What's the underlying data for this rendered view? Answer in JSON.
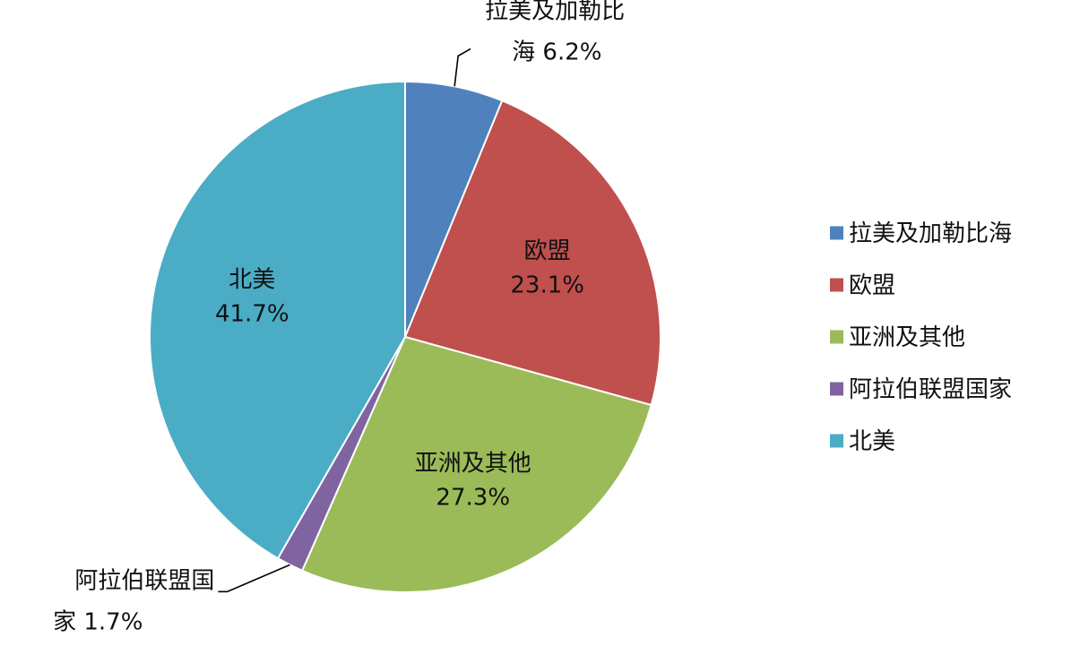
{
  "chart_data": {
    "type": "pie",
    "title": "",
    "slices": [
      {
        "name": "拉美及加勒比海",
        "value": 6.2,
        "value_label": "6.2%",
        "color": "#4F81BD",
        "label_lines": [
          "拉美及加勒比",
          "海"
        ]
      },
      {
        "name": "欧盟",
        "value": 23.1,
        "value_label": "23.1%",
        "color": "#C0504D",
        "label_lines": [
          "欧盟"
        ]
      },
      {
        "name": "亚洲及其他",
        "value": 27.3,
        "value_label": "27.3%",
        "color": "#9BBB59",
        "label_lines": [
          "亚洲及其他"
        ]
      },
      {
        "name": "阿拉伯联盟国家",
        "value": 1.7,
        "value_label": "1.7%",
        "color": "#8064A2",
        "label_lines": [
          "阿拉伯联盟国",
          "家"
        ]
      },
      {
        "name": "北美",
        "value": 41.7,
        "value_label": "41.7%",
        "color": "#4BACC6",
        "label_lines": [
          "北美"
        ]
      }
    ],
    "legend": {
      "position": "right",
      "entries": [
        "拉美及加勒比海",
        "欧盟",
        "亚洲及其他",
        "阿拉伯联盟国家",
        "北美"
      ]
    }
  }
}
